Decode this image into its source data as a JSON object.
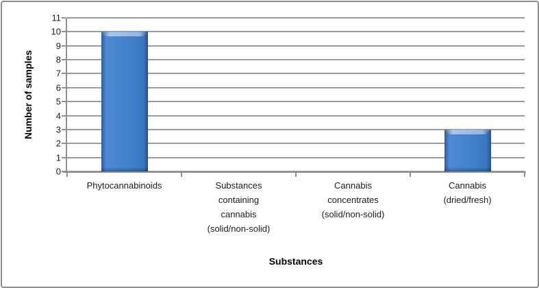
{
  "chart_data": {
    "type": "bar",
    "title": "",
    "categories": [
      "Phytocannabinoids",
      "Substances containing cannabis (solid/non-solid)",
      "Cannabis concentrates (solid/non-solid)",
      "Cannabis (dried/fresh)"
    ],
    "category_label_lines": [
      [
        "Phytocannabinoids"
      ],
      [
        "Substances",
        "containing",
        "cannabis",
        "(solid/non-solid)"
      ],
      [
        "Cannabis",
        "concentrates",
        "(solid/non-solid)"
      ],
      [
        "Cannabis",
        "(dried/fresh)"
      ]
    ],
    "values": [
      10,
      0,
      0,
      3
    ],
    "xlabel": "Substances",
    "ylabel": "Number of samples",
    "ylim": [
      0,
      11
    ],
    "yticks": [
      0,
      1,
      2,
      3,
      4,
      5,
      6,
      7,
      8,
      9,
      10,
      11
    ],
    "grid": true,
    "legend_position": "none",
    "colors": {
      "bar_fill": "#4080c8",
      "bar_edge_dark": "#2d5c9e",
      "bar_bevel_highlight": "#9cc3ef",
      "gridline": "#9a9a9a",
      "axis_line": "#8f8f8f",
      "frame_border": "#8c8c8c",
      "text": "#1a1a1a"
    }
  }
}
